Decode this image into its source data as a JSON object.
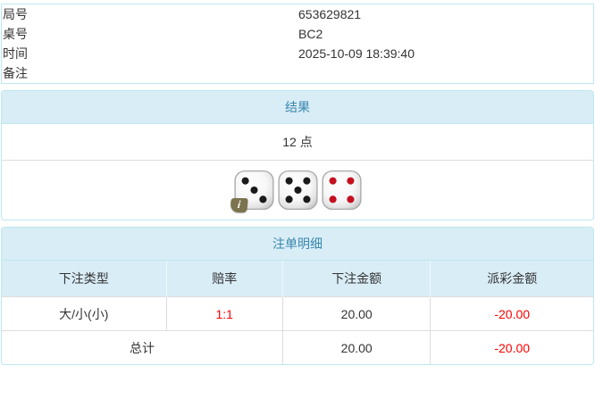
{
  "info_table": {
    "rows": [
      {
        "label": "局号",
        "value": "653629821",
        "highlight": true
      },
      {
        "label": "桌号",
        "value": "BC2",
        "highlight": false
      },
      {
        "label": "时间",
        "value": "2025-10-09 18:39:40",
        "highlight": false
      },
      {
        "label": "备注",
        "value": "",
        "highlight": false
      }
    ]
  },
  "result_panel": {
    "title": "结果",
    "points": "12 点",
    "dice": [
      {
        "value": 3,
        "pip_color": "black",
        "has_info_badge": true
      },
      {
        "value": 5,
        "pip_color": "black",
        "has_info_badge": false
      },
      {
        "value": 4,
        "pip_color": "red",
        "has_info_badge": false
      }
    ],
    "info_badge_glyph": "i"
  },
  "bets_panel": {
    "title": "注单明细",
    "columns": [
      "下注类型",
      "赔率",
      "下注金额",
      "派彩金额"
    ],
    "rows": [
      {
        "type": "大/小(小)",
        "odds": "1:1",
        "amount": "20.00",
        "payout": "-20.00"
      }
    ],
    "total": {
      "label": "总计",
      "amount": "20.00",
      "payout": "-20.00"
    }
  },
  "colors": {
    "highlight_yellow": "#fafac8",
    "header_bg": "#d9edf7",
    "header_text": "#3a87ad",
    "panel_border": "#bce8f1",
    "cell_border": "#dddddd",
    "negative_red": "#ff0000",
    "text": "#333333",
    "pip_black": "#1a1a1a",
    "pip_red": "#c4101f"
  }
}
